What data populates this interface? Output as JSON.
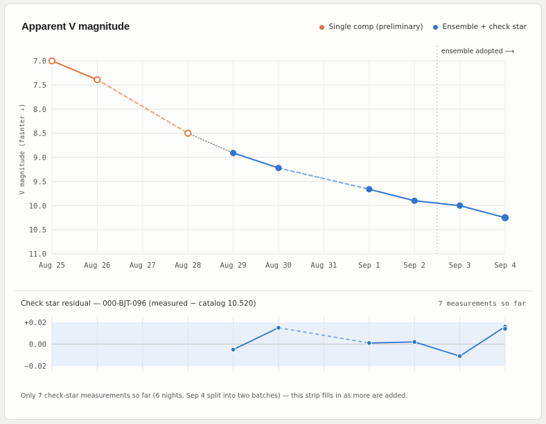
{
  "chart_data": [
    {
      "type": "line",
      "title": "Apparent V magnitude",
      "ylabel": "V magnitude (fainter ↓)",
      "xlabel": "",
      "y_reversed": true,
      "ylim": [
        7.0,
        11.0
      ],
      "y_ticks": [
        "7.0",
        "7.5",
        "8.0",
        "8.5",
        "9.0",
        "9.5",
        "10.0",
        "10.5",
        "11.0"
      ],
      "categories": [
        "Aug 25",
        "Aug 26",
        "Aug 27",
        "Aug 28",
        "Aug 29",
        "Aug 30",
        "Aug 31",
        "Sep 1",
        "Sep 2",
        "Sep 3",
        "Sep 4"
      ],
      "grid": true,
      "legend_position": "top-right",
      "annotation": "ensemble adopted ⟶",
      "annotation_x": 8.5,
      "series": [
        {
          "name": "Single comp (preliminary)",
          "color": "#e0703a",
          "marker": "hollow",
          "points": [
            {
              "x": 0,
              "y": 7.0
            },
            {
              "x": 1,
              "y": 7.39
            },
            {
              "x": 3,
              "y": 8.5
            }
          ]
        },
        {
          "name": "Ensemble + check star",
          "color": "#2f74d0",
          "marker": "filled",
          "points": [
            {
              "x": 4,
              "y": 8.91
            },
            {
              "x": 5,
              "y": 9.22
            },
            {
              "x": 7,
              "y": 9.66
            },
            {
              "x": 8,
              "y": 9.9
            },
            {
              "x": 9,
              "y": 10.0
            },
            {
              "x": 10,
              "y": 10.25
            }
          ]
        }
      ]
    },
    {
      "type": "line",
      "title": "Check star residual — 000-BJT-096 (measured − catalog 10.520)",
      "ylim": [
        -0.025,
        0.025
      ],
      "y_ticks": [
        "+0.02",
        "0.00",
        "−0.02"
      ],
      "band": [
        -0.02,
        0.02
      ],
      "points": [
        {
          "x": 4,
          "y": -0.005
        },
        {
          "x": 5,
          "y": 0.015
        },
        {
          "x": 7,
          "y": 0.001
        },
        {
          "x": 8,
          "y": 0.002
        },
        {
          "x": 9,
          "y": -0.011
        },
        {
          "x": 10,
          "y": 0.016
        },
        {
          "x": 10,
          "y": 0.014
        }
      ]
    }
  ],
  "strip": {
    "count_label": "7 measurements so far",
    "footnote": "Only 7 check-star measurements so far (6 nights, Sep 4 split into two batches) — this strip fills in as more are added."
  },
  "colors": {
    "single": "#e0703a",
    "ensemble": "#2f74d0",
    "band": "#e8f0f9"
  }
}
